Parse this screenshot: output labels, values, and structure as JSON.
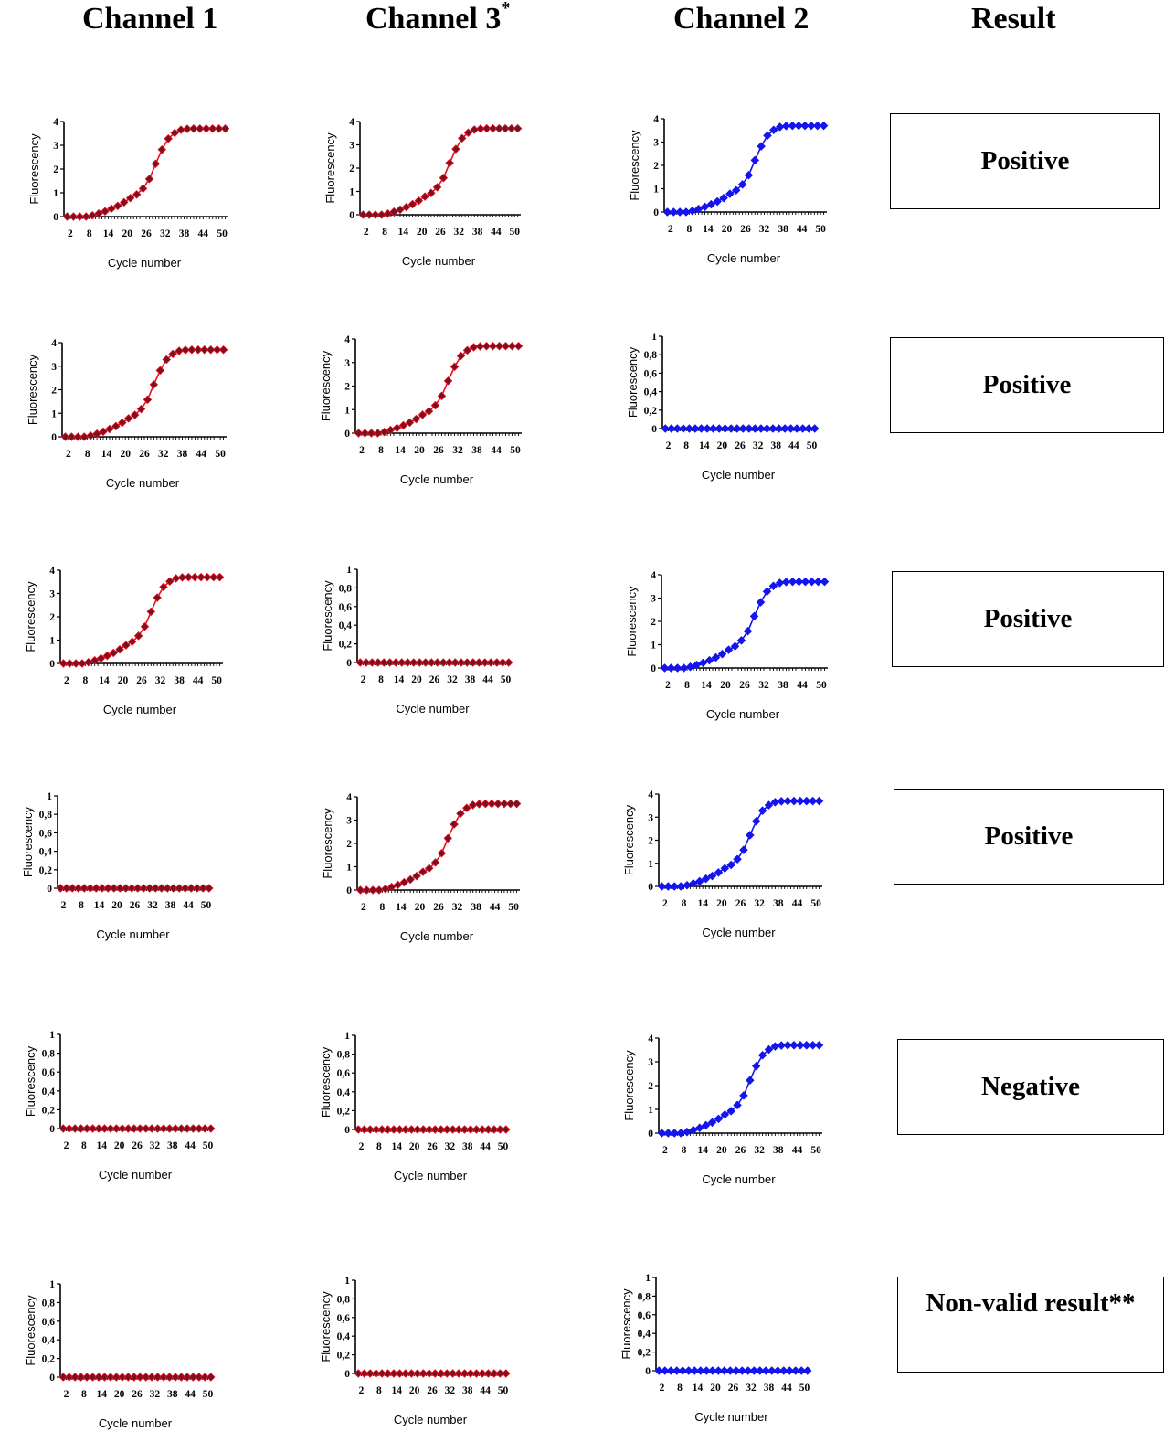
{
  "headers": {
    "channel1": "Channel 1",
    "channel3": "Channel 3",
    "channel3_mark": "*",
    "channel2": "Channel 2",
    "result": "Result"
  },
  "results": [
    "Positive",
    "Positive",
    "Positive",
    "Positive",
    "Negative",
    "Non-valid result**"
  ],
  "colors": {
    "channel1_line": "#e8101f",
    "channel1_marker": "#7a1022",
    "channel3_line": "#e8101f",
    "channel3_marker": "#7a1022",
    "channel2": "#1414ee"
  },
  "chart_data": {
    "type": "line",
    "xlabel": "Cycle number",
    "ylabel": "Fluorescency",
    "x_ticks": [
      2,
      8,
      14,
      20,
      26,
      32,
      38,
      44,
      50
    ],
    "x": [
      1,
      3,
      5,
      7,
      9,
      11,
      13,
      15,
      17,
      19,
      21,
      23,
      25,
      27,
      29,
      31,
      33,
      35,
      37,
      39,
      41,
      43,
      45,
      47,
      49,
      51
    ],
    "curves": {
      "positive": [
        0,
        0,
        0,
        0,
        0.05,
        0.13,
        0.22,
        0.33,
        0.45,
        0.6,
        0.78,
        0.93,
        1.18,
        1.58,
        2.22,
        2.82,
        3.28,
        3.52,
        3.65,
        3.69,
        3.7,
        3.7,
        3.7,
        3.7,
        3.7,
        3.7
      ],
      "negative": [
        0,
        0,
        0,
        0,
        0,
        0,
        0,
        0,
        0,
        0,
        0,
        0,
        0,
        0,
        0,
        0,
        0,
        0,
        0,
        0,
        0,
        0,
        0,
        0,
        0,
        0
      ]
    },
    "y_ticks_positive": [
      "0",
      "1",
      "2",
      "3",
      "4"
    ],
    "y_ticks_negative": [
      "0",
      "0,2",
      "0,4",
      "0,6",
      "0,8",
      "1"
    ],
    "ylim_positive": [
      0,
      4
    ],
    "ylim_negative": [
      0,
      1
    ],
    "panels": [
      {
        "row": 1,
        "channel": "Channel 1",
        "curve": "positive"
      },
      {
        "row": 1,
        "channel": "Channel 3",
        "curve": "positive"
      },
      {
        "row": 1,
        "channel": "Channel 2",
        "curve": "positive"
      },
      {
        "row": 2,
        "channel": "Channel 1",
        "curve": "positive"
      },
      {
        "row": 2,
        "channel": "Channel 3",
        "curve": "positive"
      },
      {
        "row": 2,
        "channel": "Channel 2",
        "curve": "negative"
      },
      {
        "row": 3,
        "channel": "Channel 1",
        "curve": "positive"
      },
      {
        "row": 3,
        "channel": "Channel 3",
        "curve": "negative"
      },
      {
        "row": 3,
        "channel": "Channel 2",
        "curve": "positive"
      },
      {
        "row": 4,
        "channel": "Channel 1",
        "curve": "negative"
      },
      {
        "row": 4,
        "channel": "Channel 3",
        "curve": "positive"
      },
      {
        "row": 4,
        "channel": "Channel 2",
        "curve": "positive"
      },
      {
        "row": 5,
        "channel": "Channel 1",
        "curve": "negative"
      },
      {
        "row": 5,
        "channel": "Channel 3",
        "curve": "negative"
      },
      {
        "row": 5,
        "channel": "Channel 2",
        "curve": "positive"
      },
      {
        "row": 6,
        "channel": "Channel 1",
        "curve": "negative"
      },
      {
        "row": 6,
        "channel": "Channel 3",
        "curve": "negative"
      },
      {
        "row": 6,
        "channel": "Channel 2",
        "curve": "negative"
      }
    ]
  }
}
